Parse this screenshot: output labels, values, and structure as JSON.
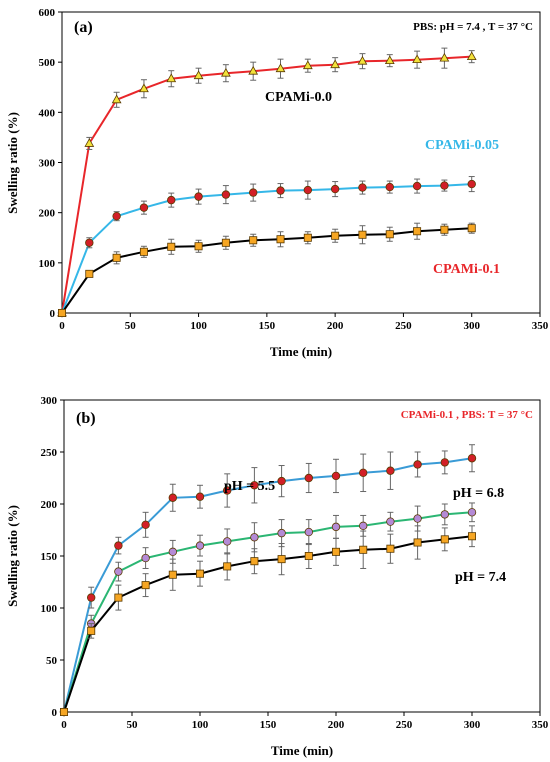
{
  "chart_data": [
    {
      "type": "line",
      "panel_label": "(a)",
      "condition_text": "PBS: pH = 7.4 , T = 37 °C",
      "condition_color": "#000000",
      "xlabel": "Time (min)",
      "ylabel": "Swelling ratio (%)",
      "xlim": [
        0,
        350
      ],
      "ylim": [
        0,
        600
      ],
      "xticks": [
        "0",
        "50",
        "100",
        "150",
        "200",
        "250",
        "300",
        "350"
      ],
      "yticks": [
        "0",
        "100",
        "200",
        "300",
        "400",
        "500",
        "600"
      ],
      "x": [
        0,
        20,
        40,
        60,
        80,
        100,
        120,
        140,
        160,
        180,
        200,
        220,
        240,
        260,
        280,
        300
      ],
      "series": [
        {
          "name": "CPAMi-0.0",
          "line_color": "#e8262a",
          "marker_color": "#f3e13a",
          "marker": "triangle",
          "label_color": "#000000",
          "values": [
            0,
            338,
            425,
            447,
            467,
            473,
            478,
            482,
            487,
            493,
            495,
            502,
            503,
            505,
            508,
            511
          ],
          "errors": [
            0,
            12,
            15,
            18,
            16,
            15,
            17,
            18,
            19,
            13,
            14,
            15,
            12,
            17,
            20,
            12
          ]
        },
        {
          "name": "CPAMi-0.05",
          "line_color": "#35b7e8",
          "marker_color": "#d21f27",
          "marker": "circle",
          "label_color": "#35b7e8",
          "values": [
            0,
            140,
            193,
            210,
            225,
            232,
            236,
            240,
            244,
            245,
            247,
            250,
            251,
            253,
            254,
            257
          ],
          "errors": [
            0,
            10,
            9,
            13,
            14,
            15,
            18,
            17,
            14,
            18,
            15,
            13,
            12,
            14,
            11,
            15
          ]
        },
        {
          "name": "CPAMi-0.1",
          "line_color": "#000000",
          "marker_color": "#f6a623",
          "marker": "square",
          "label_color": "#e8262a",
          "values": [
            0,
            78,
            110,
            122,
            132,
            133,
            140,
            145,
            147,
            150,
            154,
            156,
            157,
            163,
            166,
            169
          ],
          "errors": [
            0,
            6,
            12,
            11,
            15,
            12,
            13,
            12,
            15,
            12,
            13,
            18,
            14,
            16,
            11,
            10
          ]
        }
      ]
    },
    {
      "type": "line",
      "panel_label": "(b)",
      "condition_text": "CPAMi-0.1 , PBS: T = 37 °C",
      "condition_color": "#e8262a",
      "xlabel": "Time (min)",
      "ylabel": "Swelling ratio (%)",
      "xlim": [
        0,
        350
      ],
      "ylim": [
        0,
        300
      ],
      "xticks": [
        "0",
        "50",
        "100",
        "150",
        "200",
        "250",
        "300",
        "350"
      ],
      "yticks": [
        "0",
        "50",
        "100",
        "150",
        "200",
        "250",
        "300"
      ],
      "x": [
        0,
        20,
        40,
        60,
        80,
        100,
        120,
        140,
        160,
        180,
        200,
        220,
        240,
        260,
        280,
        300
      ],
      "series": [
        {
          "name": "pH = 5.5",
          "line_color": "#3a9bd6",
          "marker_color": "#d21f27",
          "marker": "circle",
          "label_color": "#000000",
          "values": [
            0,
            110,
            160,
            180,
            206,
            207,
            213,
            218,
            222,
            225,
            227,
            230,
            232,
            238,
            240,
            244
          ],
          "errors": [
            0,
            10,
            8,
            12,
            13,
            11,
            16,
            17,
            15,
            14,
            16,
            18,
            18,
            12,
            11,
            13
          ]
        },
        {
          "name": "pH = 6.8",
          "line_color": "#2bb673",
          "marker_color": "#b48ad6",
          "marker": "circle",
          "label_color": "#000000",
          "values": [
            0,
            85,
            135,
            148,
            154,
            160,
            164,
            168,
            172,
            173,
            178,
            179,
            183,
            186,
            190,
            192
          ],
          "errors": [
            0,
            8,
            9,
            10,
            11,
            10,
            12,
            14,
            13,
            12,
            11,
            10,
            9,
            12,
            10,
            9
          ]
        },
        {
          "name": "pH = 7.4",
          "line_color": "#000000",
          "marker_color": "#f6a623",
          "marker": "square",
          "label_color": "#000000",
          "values": [
            0,
            78,
            110,
            122,
            132,
            133,
            140,
            145,
            147,
            150,
            154,
            156,
            157,
            163,
            166,
            169
          ],
          "errors": [
            0,
            7,
            12,
            11,
            15,
            12,
            13,
            12,
            15,
            12,
            13,
            18,
            14,
            16,
            11,
            10
          ]
        }
      ]
    }
  ]
}
